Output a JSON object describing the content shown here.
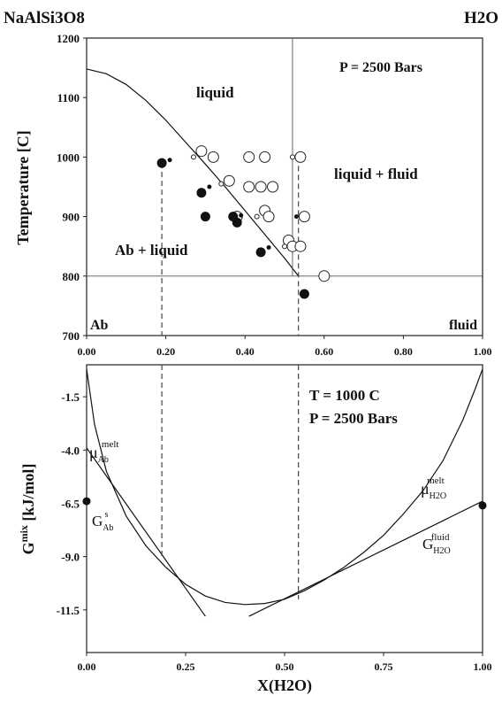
{
  "chart_data": [
    {
      "type": "scatter",
      "header_left": "NaAlSi3O8",
      "header_right": "H2O",
      "ylabel": "Temperature [C]",
      "xlim": [
        0,
        1
      ],
      "ylim": [
        700,
        1200
      ],
      "xticks": [
        "0.00",
        "0.20",
        "0.40",
        "0.60",
        "0.80",
        "1.00"
      ],
      "xtick_values": [
        0,
        0.2,
        0.4,
        0.6,
        0.8,
        1.0
      ],
      "yticks": [
        "700",
        "800",
        "900",
        "1000",
        "1100",
        "1200"
      ],
      "ytick_values": [
        700,
        800,
        900,
        1000,
        1100,
        1200
      ],
      "annotations": {
        "pressure": "P = 2500 Bars",
        "liquid": "liquid",
        "liquid_fluid": "liquid + fluid",
        "ab_liquid": "Ab + liquid",
        "ab": "Ab",
        "fluid": "fluid"
      },
      "liquidus": {
        "x": [
          0,
          0.05,
          0.1,
          0.15,
          0.2,
          0.25,
          0.3,
          0.35,
          0.4,
          0.45,
          0.5,
          0.535
        ],
        "y": [
          1148,
          1140,
          1122,
          1095,
          1062,
          1025,
          988,
          950,
          910,
          870,
          830,
          800
        ]
      },
      "solvus_x": 0.52,
      "solidus_y": 800,
      "dashed_x": [
        0.19,
        0.535
      ],
      "filled_large": [
        {
          "x": 0.19,
          "y": 990
        },
        {
          "x": 0.29,
          "y": 940
        },
        {
          "x": 0.3,
          "y": 900
        },
        {
          "x": 0.37,
          "y": 900
        },
        {
          "x": 0.38,
          "y": 890
        },
        {
          "x": 0.44,
          "y": 840
        },
        {
          "x": 0.55,
          "y": 770
        }
      ],
      "filled_small": [
        {
          "x": 0.21,
          "y": 995
        },
        {
          "x": 0.31,
          "y": 950
        },
        {
          "x": 0.39,
          "y": 902
        },
        {
          "x": 0.46,
          "y": 848
        },
        {
          "x": 0.53,
          "y": 900
        }
      ],
      "open_large": [
        {
          "x": 0.29,
          "y": 1010
        },
        {
          "x": 0.32,
          "y": 1000
        },
        {
          "x": 0.36,
          "y": 960
        },
        {
          "x": 0.41,
          "y": 1000
        },
        {
          "x": 0.45,
          "y": 1000
        },
        {
          "x": 0.41,
          "y": 950
        },
        {
          "x": 0.44,
          "y": 950
        },
        {
          "x": 0.47,
          "y": 950
        },
        {
          "x": 0.38,
          "y": 900
        },
        {
          "x": 0.45,
          "y": 910
        },
        {
          "x": 0.46,
          "y": 900
        },
        {
          "x": 0.51,
          "y": 860
        },
        {
          "x": 0.52,
          "y": 850
        },
        {
          "x": 0.54,
          "y": 1000
        },
        {
          "x": 0.55,
          "y": 900
        },
        {
          "x": 0.54,
          "y": 850
        },
        {
          "x": 0.6,
          "y": 800
        }
      ],
      "open_small": [
        {
          "x": 0.27,
          "y": 1000
        },
        {
          "x": 0.34,
          "y": 955
        },
        {
          "x": 0.43,
          "y": 900
        },
        {
          "x": 0.52,
          "y": 1000
        },
        {
          "x": 0.5,
          "y": 850
        }
      ]
    },
    {
      "type": "line",
      "xlabel": "X(H2O)",
      "ylabel_main": "G",
      "ylabel_sup": "mix",
      "ylabel_unit": " [kJ/mol]",
      "xlim": [
        0,
        1
      ],
      "ylim": [
        -13.5,
        0
      ],
      "xticks": [
        "0.00",
        "0.25",
        "0.50",
        "0.75",
        "1.00"
      ],
      "xtick_values": [
        0,
        0.25,
        0.5,
        0.75,
        1.0
      ],
      "yticks": [
        "-1.5",
        "-4.0",
        "-6.5",
        "-9.0",
        "-11.5"
      ],
      "ytick_values": [
        -1.5,
        -4.0,
        -6.5,
        -9.0,
        -11.5
      ],
      "annotations": {
        "temperature": "T = 1000 C",
        "pressure": "P = 2500 Bars",
        "mu_ab_base": "μ",
        "mu_ab_sub": "Ab",
        "mu_ab_sup": "melt",
        "g_ab_base": "G",
        "g_ab_sub": "Ab",
        "g_ab_sup": "s",
        "mu_h2o_base": "μ",
        "mu_h2o_sub": "H2O",
        "mu_h2o_sup": "melt",
        "g_h2o_base": "G",
        "g_h2o_sub": "H2O",
        "g_h2o_sup": "fluid"
      },
      "melt_curve": {
        "x": [
          0.0,
          0.02,
          0.05,
          0.1,
          0.15,
          0.2,
          0.25,
          0.3,
          0.35,
          0.4,
          0.45,
          0.5,
          0.55,
          0.6,
          0.65,
          0.7,
          0.75,
          0.8,
          0.85,
          0.9,
          0.95,
          0.98,
          1.0
        ],
        "y": [
          -0.2,
          -2.8,
          -5.0,
          -7.1,
          -8.5,
          -9.5,
          -10.3,
          -10.85,
          -11.15,
          -11.25,
          -11.2,
          -11.0,
          -10.6,
          -10.1,
          -9.5,
          -8.8,
          -8.0,
          -7.0,
          -5.9,
          -4.5,
          -2.6,
          -1.2,
          -0.2
        ]
      },
      "tangent_left": {
        "x": [
          0.0,
          0.3
        ],
        "y": [
          -3.9,
          -11.8
        ]
      },
      "tangent_right": {
        "x": [
          0.41,
          1.0
        ],
        "y": [
          -11.8,
          -6.4
        ]
      },
      "dashed_x": [
        0.19,
        0.535
      ],
      "endpoint_dots": [
        {
          "x": 0.0,
          "y": -6.4
        },
        {
          "x": 1.0,
          "y": -6.6
        }
      ]
    }
  ]
}
